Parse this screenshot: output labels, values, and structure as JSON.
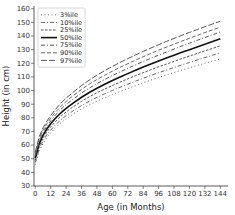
{
  "chart_data": {
    "type": "line",
    "x_label": "Age (in Months)",
    "y_label": "Height (in cm)",
    "xlim": [
      -1,
      150
    ],
    "ylim": [
      30,
      162
    ],
    "xticks": [
      0,
      12,
      24,
      36,
      48,
      60,
      72,
      84,
      96,
      108,
      120,
      132,
      144
    ],
    "yticks": [
      30,
      40,
      50,
      60,
      70,
      80,
      90,
      100,
      110,
      120,
      130,
      140,
      150,
      160
    ],
    "grid": false,
    "legend": "upper left",
    "x": [
      0,
      3,
      6,
      9,
      12,
      15,
      18,
      21,
      24,
      30,
      36,
      42,
      48,
      54,
      60,
      66,
      72,
      78,
      84,
      90,
      96,
      102,
      108,
      114,
      120,
      126,
      132,
      138,
      144
    ],
    "series": [
      {
        "name": "3%ile",
        "color": "#666666",
        "line_style": "dotted",
        "values": [
          45.6,
          55.3,
          61.2,
          65.6,
          69.0,
          72.0,
          74.8,
          77.2,
          79.3,
          83.1,
          86.5,
          89.5,
          92.2,
          94.7,
          97.1,
          99.3,
          101.5,
          103.6,
          105.7,
          107.7,
          109.6,
          111.4,
          113.2,
          115.0,
          116.7,
          118.4,
          120.0,
          121.6,
          123.2
        ]
      },
      {
        "name": "10%ile",
        "color": "#666666",
        "line_style": "dashdot",
        "values": [
          47.2,
          57.1,
          63.1,
          67.5,
          71.0,
          74.1,
          76.9,
          79.4,
          81.6,
          85.5,
          89.0,
          92.2,
          95.0,
          97.6,
          100.1,
          102.4,
          104.7,
          106.9,
          109.0,
          111.1,
          113.1,
          115.0,
          116.9,
          118.8,
          120.6,
          122.4,
          124.2,
          125.9,
          127.7
        ]
      },
      {
        "name": "25%ile",
        "color": "#555555",
        "line_style": "shortdash",
        "values": [
          48.9,
          59.0,
          65.2,
          69.7,
          73.3,
          76.5,
          79.4,
          82.0,
          84.3,
          88.4,
          92.1,
          95.4,
          98.4,
          101.1,
          103.7,
          106.2,
          108.6,
          110.9,
          113.1,
          115.3,
          117.4,
          119.4,
          121.4,
          123.4,
          125.3,
          127.2,
          129.1,
          130.9,
          132.8
        ]
      },
      {
        "name": "50%ile",
        "color": "#111111",
        "line_style": "solid",
        "values": [
          50.5,
          60.9,
          67.2,
          71.8,
          75.6,
          78.9,
          81.9,
          84.6,
          87.0,
          91.2,
          95.1,
          98.6,
          101.7,
          104.6,
          107.3,
          109.9,
          112.4,
          114.8,
          117.2,
          119.5,
          121.7,
          123.8,
          125.9,
          128.0,
          130.0,
          132.0,
          134.0,
          135.9,
          137.9
        ]
      },
      {
        "name": "75%ile",
        "color": "#555555",
        "line_style": "dashdot",
        "values": [
          52.1,
          62.8,
          69.2,
          73.9,
          77.8,
          81.3,
          84.4,
          87.2,
          89.7,
          94.1,
          98.2,
          101.8,
          105.1,
          108.1,
          111.0,
          113.7,
          116.3,
          118.8,
          121.3,
          123.7,
          126.0,
          128.2,
          130.4,
          132.6,
          134.7,
          136.8,
          138.9,
          140.9,
          143.0
        ]
      },
      {
        "name": "90%ile",
        "color": "#666666",
        "line_style": "dashed",
        "values": [
          53.5,
          64.4,
          70.9,
          75.7,
          79.7,
          83.3,
          86.5,
          89.4,
          92.0,
          96.6,
          100.9,
          104.7,
          108.1,
          111.2,
          114.2,
          117.0,
          119.7,
          122.3,
          124.8,
          127.2,
          129.6,
          131.8,
          134.0,
          136.2,
          138.3,
          140.4,
          142.5,
          144.5,
          146.5
        ]
      },
      {
        "name": "97%ile",
        "color": "#555555",
        "line_style": "longdash",
        "values": [
          54.9,
          66.0,
          72.6,
          77.5,
          81.7,
          85.3,
          88.7,
          91.7,
          94.4,
          99.2,
          103.7,
          107.7,
          111.3,
          114.6,
          117.7,
          120.6,
          123.4,
          126.1,
          128.7,
          131.2,
          133.6,
          136.0,
          138.2,
          140.5,
          142.6,
          144.7,
          146.8,
          148.8,
          150.8
        ]
      }
    ]
  }
}
